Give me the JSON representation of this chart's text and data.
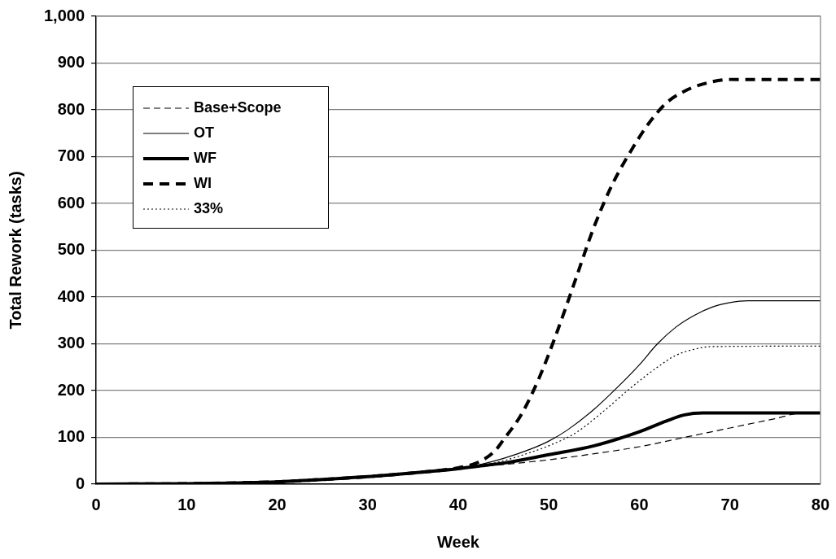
{
  "chart_data": {
    "type": "line",
    "xlabel": "Week",
    "ylabel": "Total Rework (tasks)",
    "xlim": [
      0,
      80
    ],
    "xticks": [
      0,
      10,
      20,
      30,
      40,
      50,
      60,
      70,
      80
    ],
    "ylim": [
      0,
      1000
    ],
    "yticks": [
      0,
      100,
      200,
      300,
      400,
      500,
      600,
      700,
      800,
      900,
      {
        "value": 1000,
        "label": "1,000"
      }
    ],
    "grid": "y",
    "legend": "top left",
    "marker": "none",
    "series": [
      {
        "name": "Base+Scope",
        "color": "#000000",
        "line_style": "dashed",
        "x": [
          0,
          10,
          20,
          25,
          30,
          35,
          40,
          42,
          45,
          50,
          55,
          60,
          65,
          70,
          75,
          78,
          80
        ],
        "values": [
          0,
          1,
          5,
          10,
          16,
          24,
          33,
          37,
          42,
          52,
          65,
          80,
          100,
          120,
          140,
          152,
          152
        ]
      },
      {
        "name": "OT",
        "color": "#000000",
        "line_style": "solid",
        "x": [
          0,
          10,
          20,
          25,
          30,
          35,
          40,
          42,
          45,
          48,
          50,
          52,
          55,
          58,
          60,
          62,
          64,
          66,
          68,
          70,
          72,
          80
        ],
        "values": [
          0,
          1,
          5,
          10,
          16,
          24,
          33,
          40,
          55,
          75,
          92,
          115,
          160,
          215,
          255,
          300,
          335,
          360,
          378,
          388,
          392,
          392
        ]
      },
      {
        "name": "WF",
        "color": "#000000",
        "line_style": "solid",
        "x": [
          0,
          10,
          20,
          25,
          30,
          35,
          40,
          42,
          45,
          50,
          55,
          60,
          63,
          65,
          67,
          80
        ],
        "values": [
          0,
          1,
          5,
          10,
          16,
          24,
          33,
          38,
          45,
          63,
          82,
          112,
          135,
          148,
          152,
          152
        ]
      },
      {
        "name": "WI",
        "color": "#000000",
        "line_style": "dashed",
        "x": [
          0,
          10,
          20,
          25,
          30,
          35,
          40,
          42,
          44,
          45,
          47,
          49,
          51,
          53,
          55,
          57,
          59,
          61,
          63,
          65,
          67,
          70,
          80
        ],
        "values": [
          0,
          1,
          5,
          10,
          16,
          24,
          35,
          45,
          70,
          95,
          150,
          230,
          330,
          440,
          550,
          640,
          710,
          770,
          815,
          840,
          855,
          865,
          865
        ]
      },
      {
        "name": "33%",
        "color": "#000000",
        "line_style": "dotted",
        "x": [
          0,
          10,
          20,
          25,
          30,
          35,
          40,
          42,
          45,
          48,
          50,
          53,
          56,
          59,
          62,
          64,
          66,
          68,
          80
        ],
        "values": [
          0,
          1,
          5,
          10,
          16,
          24,
          33,
          38,
          50,
          68,
          82,
          110,
          155,
          205,
          250,
          275,
          288,
          294,
          295
        ]
      }
    ]
  }
}
